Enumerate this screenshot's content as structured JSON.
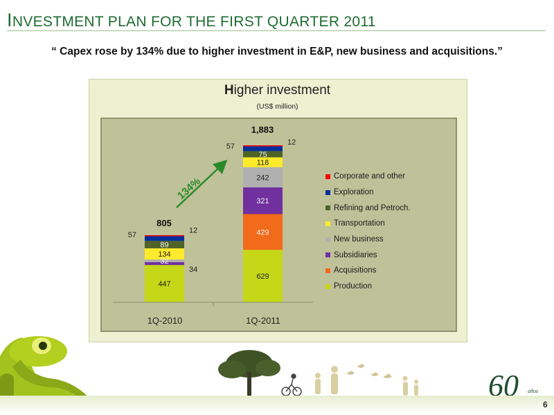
{
  "slide": {
    "title_initial": "I",
    "title_rest": "NVESTMENT PLAN FOR THE FIRST QUARTER 2011",
    "quote": "“ Capex rose by 134% due to higher investment in E&P, new business and acquisitions.”",
    "page_number": "6",
    "logo_text": "60",
    "logo_suffix": "años"
  },
  "chart_data": {
    "type": "bar",
    "stacked": true,
    "title_initial": "H",
    "title_rest": "igher investment",
    "subtitle": "(US$ million)",
    "categories": [
      "1Q-2010",
      "1Q-2011"
    ],
    "totals": [
      "805",
      "1,883"
    ],
    "growth_label": "134%",
    "series": [
      {
        "name": "Production",
        "values": [
          447,
          629
        ],
        "color": "#c5d817"
      },
      {
        "name": "Acquisitions",
        "values": [
          0,
          429
        ],
        "color": "#f26a1b"
      },
      {
        "name": "Subsidiaries",
        "values": [
          34,
          321
        ],
        "color": "#7030a0"
      },
      {
        "name": "New business",
        "values": [
          32,
          242
        ],
        "color": "#b0b0b0"
      },
      {
        "name": "Transportation",
        "values": [
          134,
          118
        ],
        "color": "#ffeb2b"
      },
      {
        "name": "Refining and Petroch.",
        "values": [
          89,
          75
        ],
        "color": "#4f6228"
      },
      {
        "name": "Exploration",
        "values": [
          57,
          57
        ],
        "color": "#002f9a"
      },
      {
        "name": "Corporate and other",
        "values": [
          12,
          12
        ],
        "color": "#ff0000"
      }
    ],
    "legend_position": "right",
    "grid": false
  }
}
